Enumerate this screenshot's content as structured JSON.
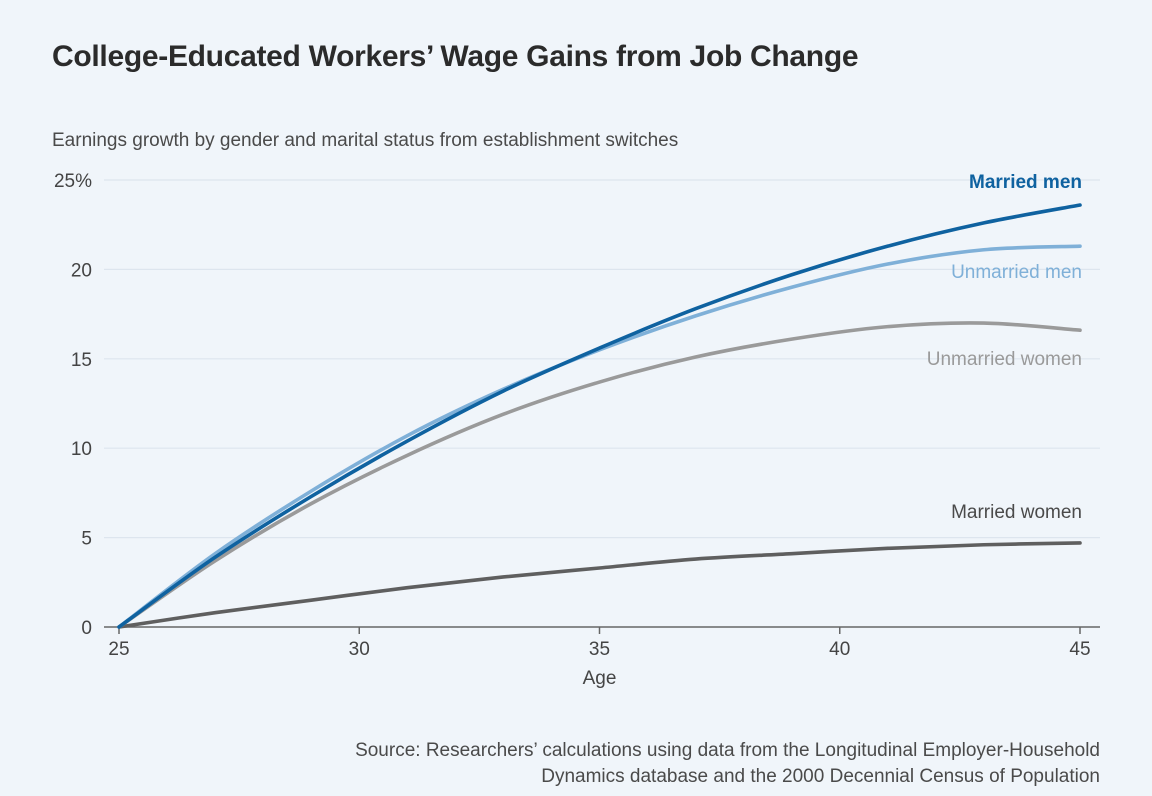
{
  "title": "College-Educated Workers’ Wage Gains from Job Change",
  "subtitle": "Earnings growth by gender and marital status from establishment switches",
  "source": {
    "line1": "Source: Researchers’ calculations using data from the Longitudinal Employer-Household",
    "line2": "Dynamics database and the 2000 Decennial Census of Population"
  },
  "colors": {
    "married_men": "#0f62a0",
    "unmarried_men": "#7fb0d8",
    "unmarried_women": "#9a9a9a",
    "married_women": "#5f5f5f",
    "grid": "#dde5ee",
    "axis": "#666666"
  },
  "chart_data": {
    "type": "line",
    "xlabel": "Age",
    "ylabel": "",
    "xlim": [
      25,
      45
    ],
    "ylim": [
      0,
      25
    ],
    "x_ticks": [
      25,
      30,
      35,
      40,
      45
    ],
    "y_ticks": [
      0,
      5,
      10,
      15,
      20,
      25
    ],
    "y_tick_labels": [
      "0",
      "5",
      "10",
      "15",
      "20",
      "25%"
    ],
    "grid": "horizontal",
    "legend": "inline labels at right end of lines",
    "x": [
      25,
      27,
      29,
      31,
      33,
      35,
      37,
      39,
      41,
      43,
      45
    ],
    "series": [
      {
        "name": "Married men",
        "color_key": "married_men",
        "values": [
          0,
          3.9,
          7.3,
          10.4,
          13.2,
          15.6,
          17.8,
          19.7,
          21.3,
          22.6,
          23.6
        ]
      },
      {
        "name": "Unmarried men",
        "color_key": "unmarried_men",
        "values": [
          0,
          4.1,
          7.6,
          10.7,
          13.3,
          15.5,
          17.4,
          19.0,
          20.3,
          21.1,
          21.3
        ]
      },
      {
        "name": "Unmarried women",
        "color_key": "unmarried_women",
        "values": [
          0,
          3.7,
          6.9,
          9.6,
          11.9,
          13.7,
          15.1,
          16.1,
          16.8,
          17.0,
          16.6
        ]
      },
      {
        "name": "Married women",
        "color_key": "married_women",
        "values": [
          0,
          0.8,
          1.5,
          2.2,
          2.8,
          3.3,
          3.8,
          4.1,
          4.4,
          4.6,
          4.7
        ]
      }
    ]
  }
}
